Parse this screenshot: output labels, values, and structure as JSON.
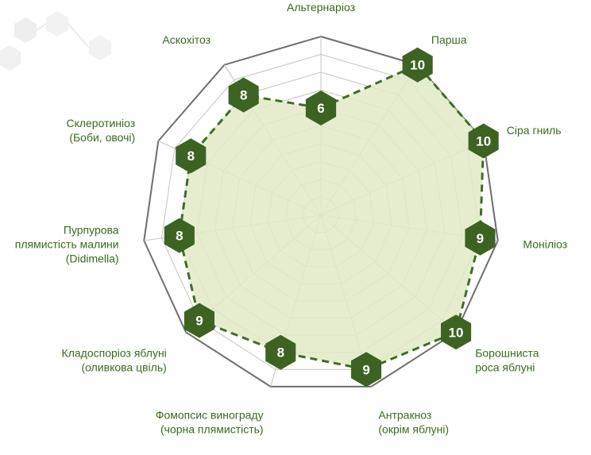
{
  "chart_data": {
    "type": "radar",
    "title": "",
    "rmax": 10,
    "levels": 10,
    "categories": [
      {
        "label": "Альтернаріоз",
        "value": 6
      },
      {
        "label": "Парша",
        "value": 10
      },
      {
        "label": "Сіра гниль",
        "value": 10
      },
      {
        "label": "Моніліоз",
        "value": 9
      },
      {
        "label": "Борошниста|роса яблуні",
        "value": 10
      },
      {
        "label": "Антракноз|(окрім яблуні)",
        "value": 9
      },
      {
        "label": "Фомопсис винограду|(чорна плямистість)",
        "value": 8
      },
      {
        "label": "Кладоспоріоз яблуні|(оливкова цвіль)",
        "value": 9
      },
      {
        "label": "Пурпурова|плямистість малини|(Didimella)",
        "value": 8
      },
      {
        "label": "Склеротиніоз|(Боби, овочі)",
        "value": 8
      },
      {
        "label": "Аскохітоз",
        "value": 8
      }
    ],
    "colors": {
      "fill": "#e2eac7",
      "line": "#3f6e24",
      "badge": "#3c6322",
      "grid": "#c4c4c4",
      "outer": "#6e6e6e",
      "label": "#3a6a1f"
    },
    "grid": true
  }
}
